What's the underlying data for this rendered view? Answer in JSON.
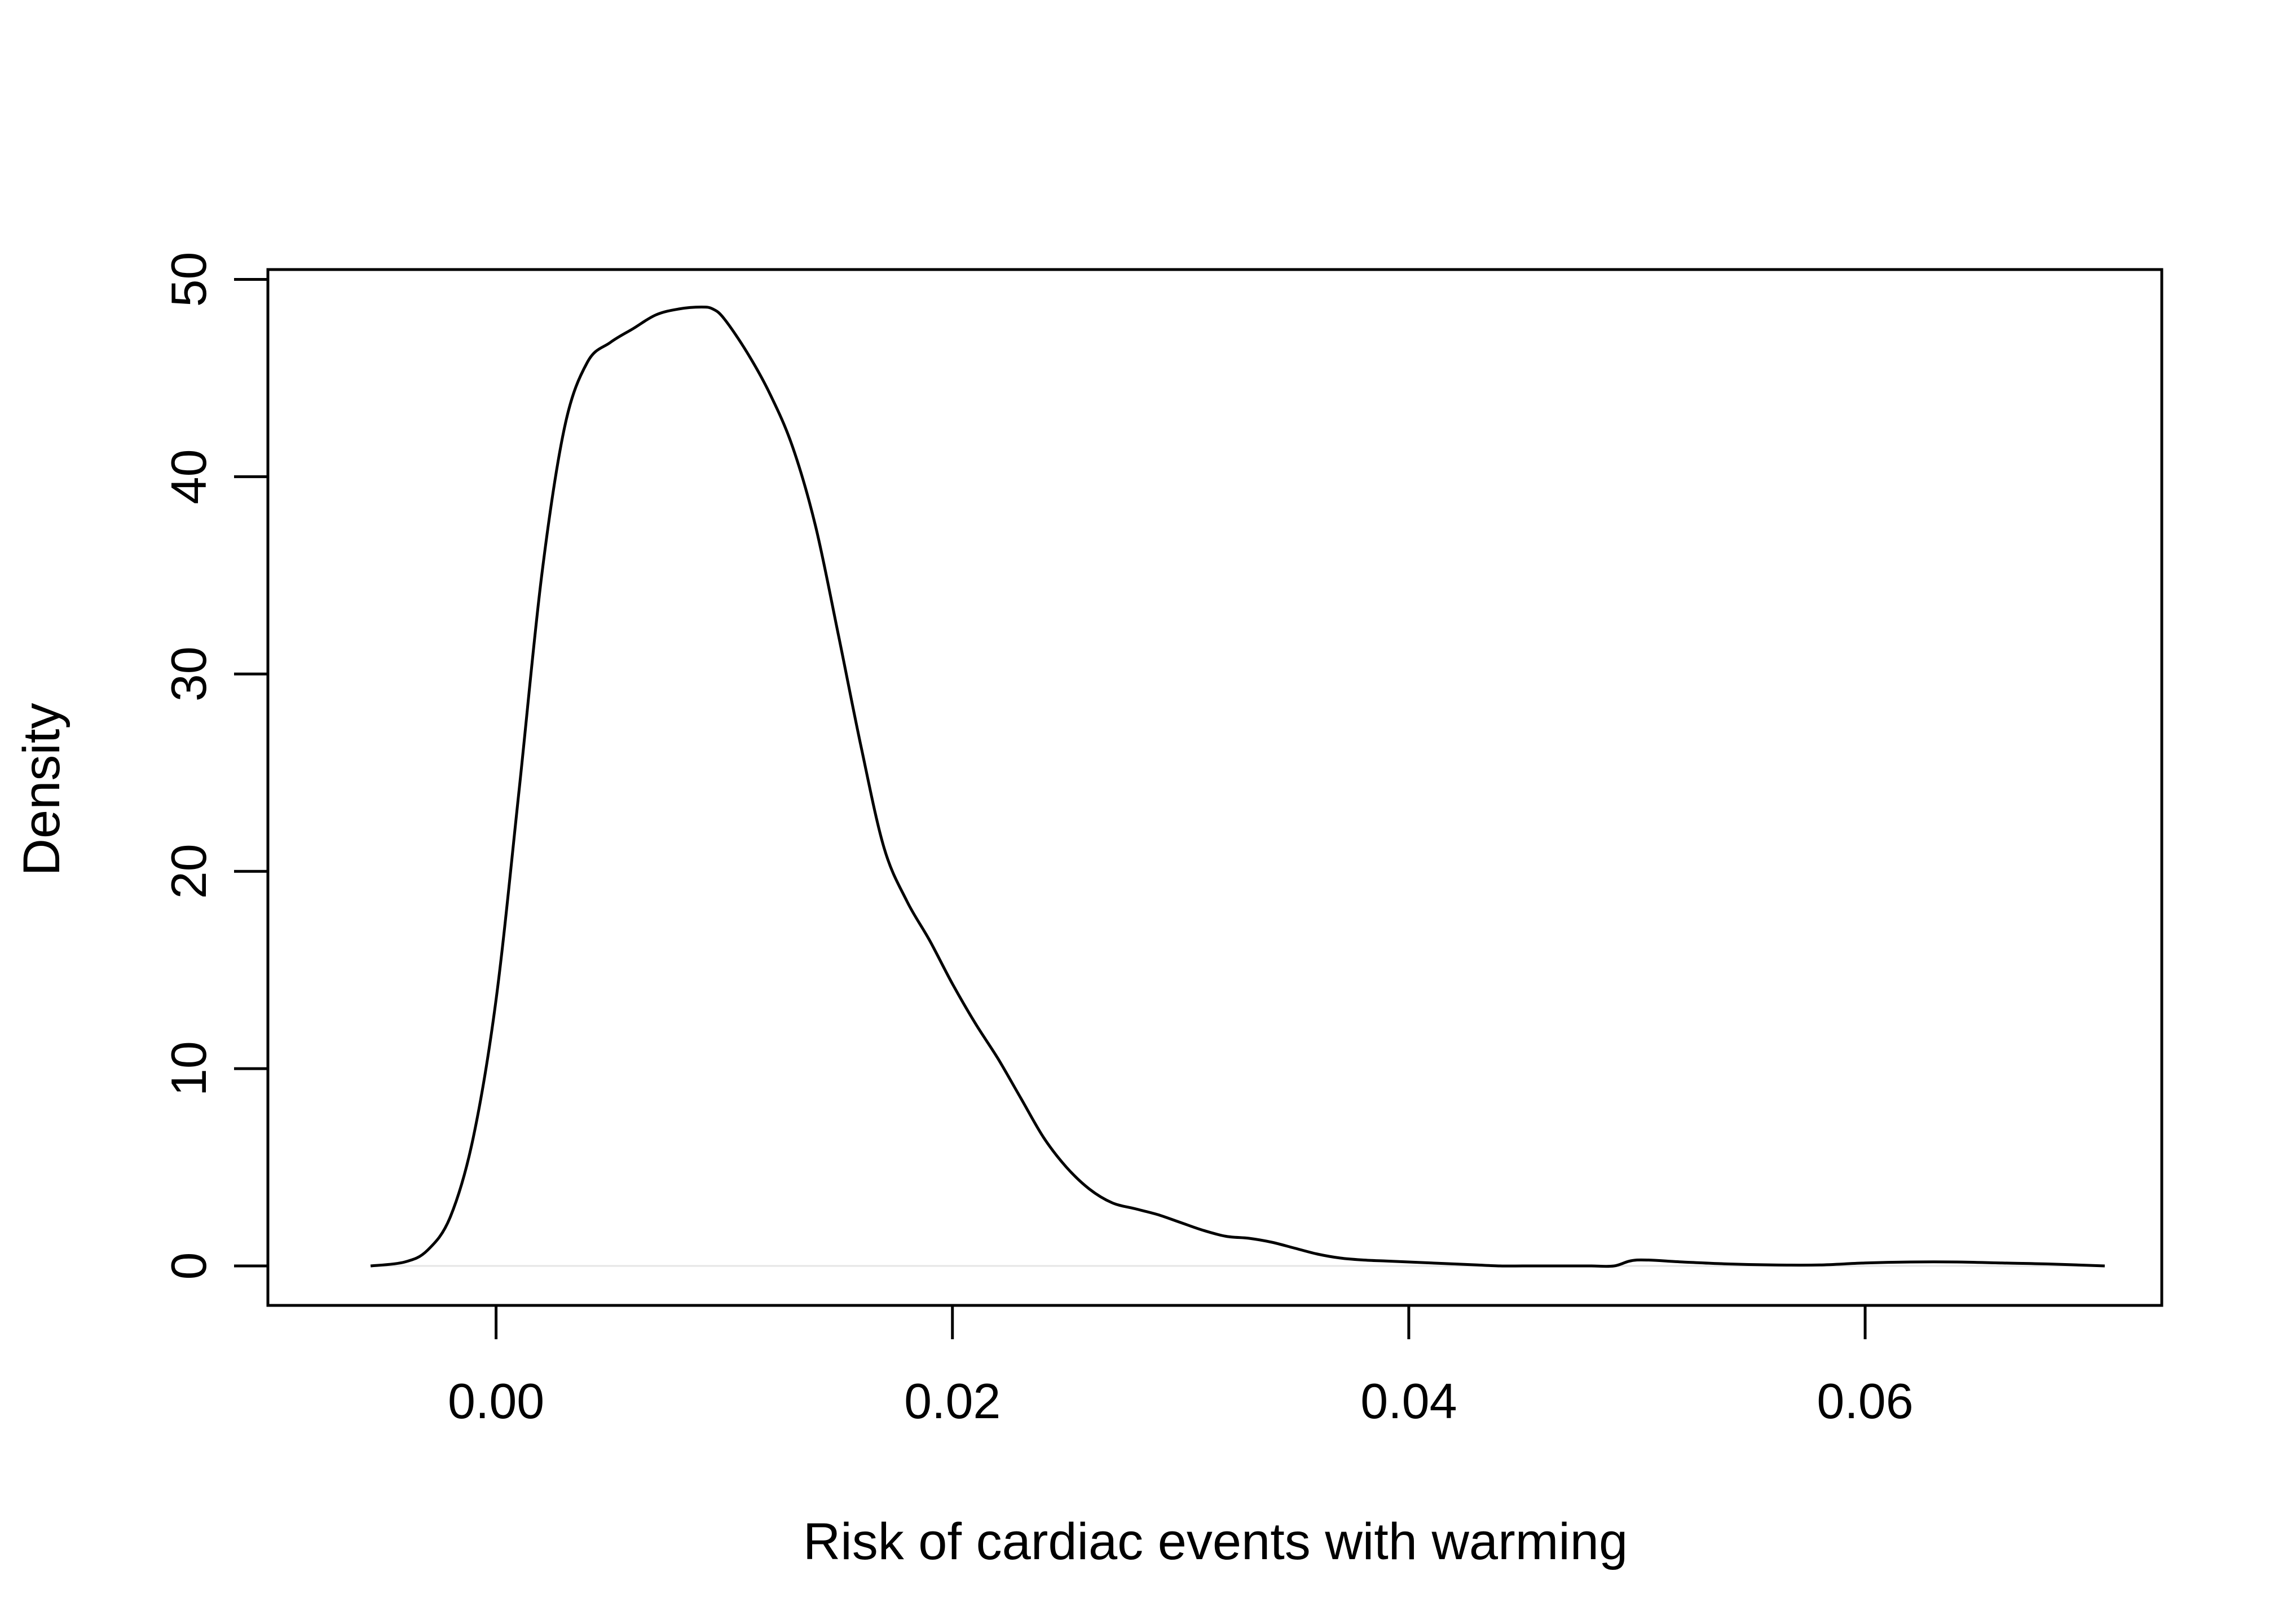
{
  "chart_data": {
    "type": "line",
    "title": "",
    "xlabel": "Risk of cardiac events with warming",
    "ylabel": "Density",
    "xlim": [
      -0.01,
      0.073
    ],
    "ylim": [
      -2,
      50.5
    ],
    "xticks": [
      0.0,
      0.02,
      0.04,
      0.06
    ],
    "xtick_labels": [
      "0.00",
      "0.02",
      "0.04",
      "0.06"
    ],
    "yticks": [
      0,
      10,
      20,
      30,
      40,
      50
    ],
    "ytick_labels": [
      "0",
      "10",
      "20",
      "30",
      "40",
      "50"
    ],
    "grid": false,
    "legend": "none",
    "series": [
      {
        "x": [
          -0.0055,
          -0.004,
          -0.003,
          -0.002,
          -0.001,
          0.0,
          0.001,
          0.002,
          0.003,
          0.004,
          0.005,
          0.006,
          0.007,
          0.008,
          0.009,
          0.0095,
          0.01,
          0.011,
          0.012,
          0.013,
          0.014,
          0.015,
          0.016,
          0.017,
          0.018,
          0.019,
          0.02,
          0.021,
          0.022,
          0.023,
          0.024,
          0.025,
          0.026,
          0.027,
          0.028,
          0.029,
          0.03,
          0.031,
          0.032,
          0.033,
          0.034,
          0.035,
          0.036,
          0.037,
          0.038,
          0.039,
          0.04,
          0.041,
          0.042,
          0.043,
          0.044,
          0.045,
          0.046,
          0.047,
          0.048,
          0.049,
          0.05,
          0.052,
          0.054,
          0.056,
          0.058,
          0.06,
          0.062,
          0.064,
          0.066,
          0.068,
          0.0705
        ],
        "y": [
          0.0,
          0.2,
          0.8,
          2.5,
          6.5,
          13.5,
          24.0,
          35.0,
          42.5,
          45.8,
          46.8,
          47.5,
          48.2,
          48.5,
          48.6,
          48.5,
          48.0,
          46.3,
          44.2,
          41.5,
          37.5,
          32.0,
          26.3,
          21.2,
          18.5,
          16.5,
          14.3,
          12.3,
          10.5,
          8.5,
          6.5,
          5.0,
          3.9,
          3.2,
          2.9,
          2.6,
          2.2,
          1.8,
          1.5,
          1.4,
          1.2,
          0.9,
          0.6,
          0.4,
          0.3,
          0.25,
          0.2,
          0.15,
          0.1,
          0.05,
          0.0,
          0.0,
          0.0,
          0.0,
          0.0,
          0.0,
          0.3,
          0.2,
          0.1,
          0.05,
          0.05,
          0.15,
          0.2,
          0.2,
          0.15,
          0.1,
          0.0
        ]
      }
    ]
  }
}
